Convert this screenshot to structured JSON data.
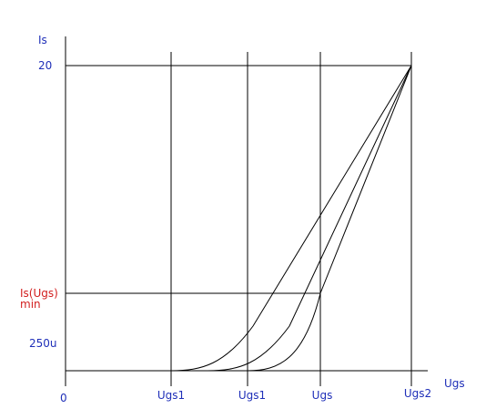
{
  "labels": {
    "y_axis": "Is",
    "x_axis": "Ugs",
    "y_top": "20",
    "y_bottom": "250u",
    "is_min_line1": "Is(Ugs)",
    "is_min_line2": "min",
    "origin": "0",
    "x_ticks": [
      "Ugs1",
      "Ugs1",
      "Ugs",
      "Ugs2"
    ]
  },
  "colors": {
    "axis_text": "#1f2fb8",
    "highlight_text": "#d21e1e",
    "lines": "#000000",
    "background": "#ffffff"
  }
}
